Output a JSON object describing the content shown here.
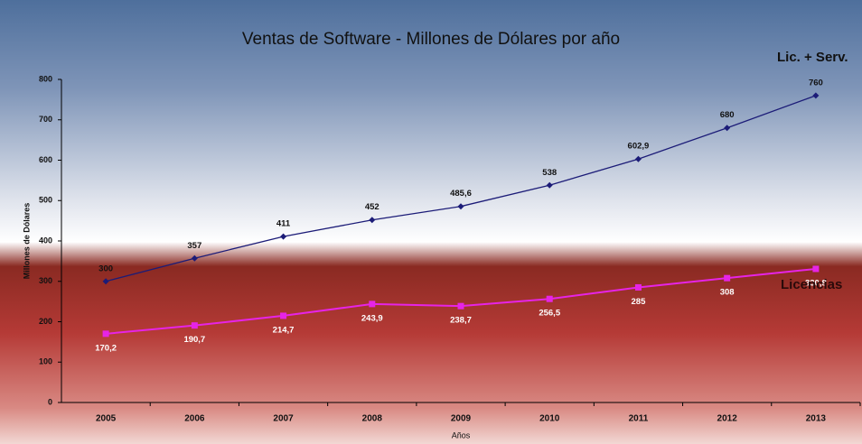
{
  "chart_data": {
    "type": "line",
    "title": "Ventas de Software - Millones de Dólares por año",
    "x_label": "Años",
    "y_label": "Millones de Dólares",
    "categories": [
      "2005",
      "2006",
      "2007",
      "2008",
      "2009",
      "2010",
      "2011",
      "2012",
      "2013"
    ],
    "series": [
      {
        "name": "Lic. + Serv.",
        "color": "#1c1c78",
        "values": [
          300,
          357,
          411,
          452,
          485.6,
          538,
          602.9,
          680,
          760
        ],
        "value_labels": [
          "300",
          "357",
          "411",
          "452",
          "485,6",
          "538",
          "602,9",
          "680",
          "760"
        ]
      },
      {
        "name": "Licencias",
        "color": "#e624e6",
        "values": [
          170.2,
          190.7,
          214.7,
          243.9,
          238.7,
          256.5,
          285,
          308,
          330.8
        ],
        "value_labels": [
          "170,2",
          "190,7",
          "214,7",
          "243,9",
          "238,7",
          "256,5",
          "285",
          "308",
          "330,8"
        ]
      }
    ],
    "ylim": [
      0,
      800
    ],
    "yticks": [
      0,
      100,
      200,
      300,
      400,
      500,
      600,
      700,
      800
    ],
    "grid": false
  }
}
